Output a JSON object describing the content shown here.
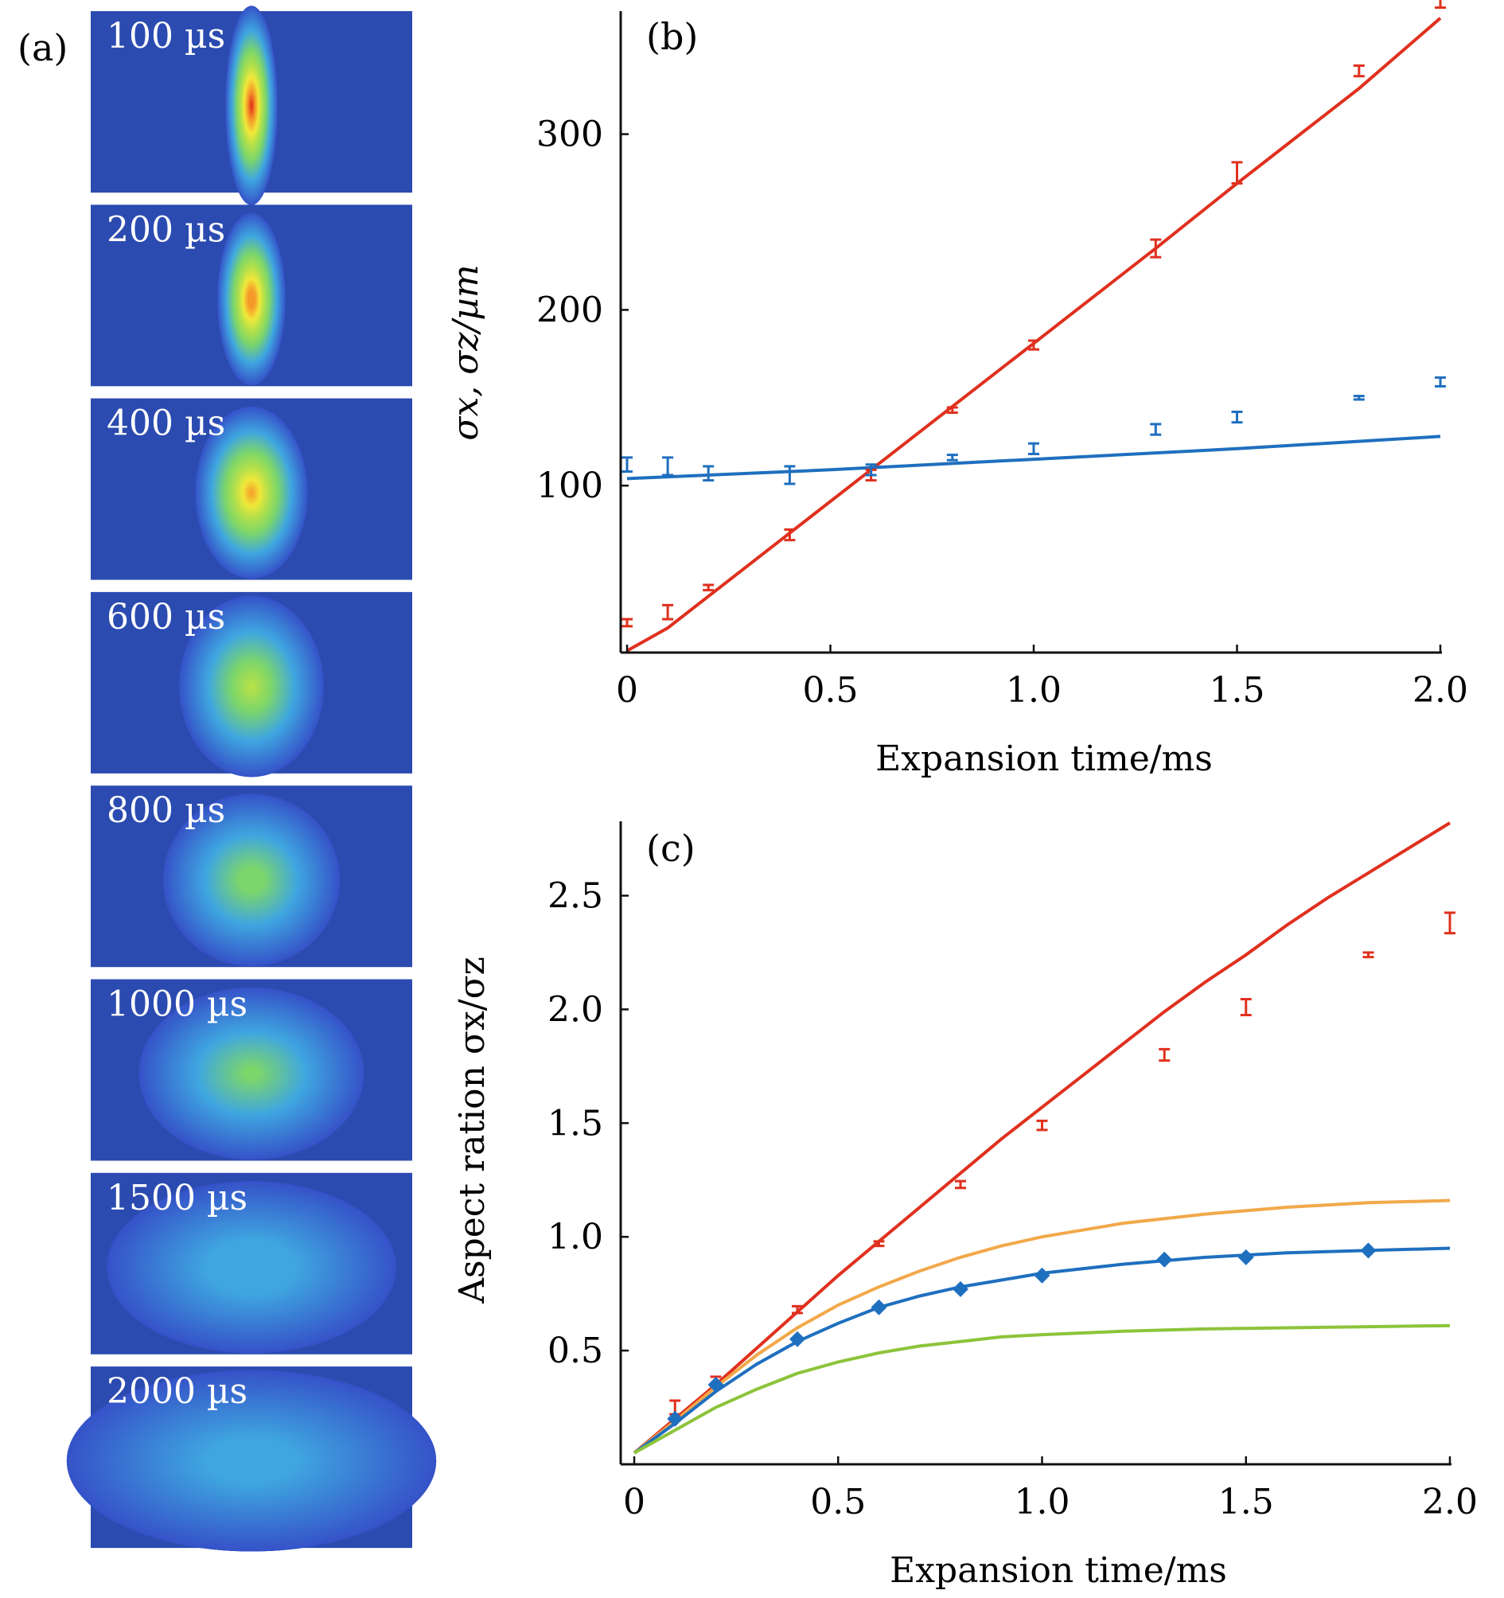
{
  "panel_labels": {
    "a": "(a)",
    "b": "(b)",
    "c": "(c)"
  },
  "images": [
    {
      "label": "100 µs",
      "t_us": 100,
      "rx": 0.065,
      "ry": 0.44,
      "peak": 1.0
    },
    {
      "label": "200 µs",
      "t_us": 200,
      "rx": 0.085,
      "ry": 0.38,
      "peak": 0.95
    },
    {
      "label": "400 µs",
      "t_us": 400,
      "rx": 0.14,
      "ry": 0.38,
      "peak": 0.85
    },
    {
      "label": "600 µs",
      "t_us": 600,
      "rx": 0.18,
      "ry": 0.4,
      "peak": 0.62
    },
    {
      "label": "800 µs",
      "t_us": 800,
      "rx": 0.22,
      "ry": 0.38,
      "peak": 0.52
    },
    {
      "label": "1000 µs",
      "t_us": 1000,
      "rx": 0.28,
      "ry": 0.38,
      "peak": 0.48
    },
    {
      "label": "1500 µs",
      "t_us": 1500,
      "rx": 0.36,
      "ry": 0.38,
      "peak": 0.36
    },
    {
      "label": "2000 µs",
      "t_us": 2000,
      "rx": 0.46,
      "ry": 0.4,
      "peak": 0.33
    }
  ],
  "colors": {
    "red": "#e0301e",
    "blue": "#1f6fbf",
    "orange": "#f2a84a",
    "green": "#8cc43a",
    "image_bg": "#2b4bb0"
  },
  "chart_data": [
    {
      "id": "b",
      "type": "scatter",
      "xlabel": "Expansion time/ms",
      "ylabel": "σx, σz/µm",
      "xlim": [
        0,
        2.0
      ],
      "ylim": [
        5,
        370
      ],
      "xticks": [
        0,
        0.5,
        1.0,
        1.5,
        2.0
      ],
      "xtick_labels": [
        "0",
        "0.5",
        "1.0",
        "1.5",
        "2.0"
      ],
      "yticks": [
        100,
        200,
        300
      ],
      "yticks_labels": [
        "100",
        "200",
        "300"
      ],
      "grid": false,
      "series": [
        {
          "color": "#e0301e",
          "x": [
            0,
            0.1,
            0.2,
            0.4,
            0.6,
            0.8,
            1.0,
            1.3,
            1.5,
            1.8,
            2.0
          ],
          "y": [
            22,
            28,
            42,
            72,
            106,
            143,
            180,
            235,
            278,
            336,
            378
          ],
          "err": [
            2,
            4,
            1.5,
            3,
            3,
            1.5,
            2.5,
            5,
            6,
            3,
            6
          ]
        },
        {
          "color": "#1f6fbf",
          "x": [
            0,
            0.1,
            0.2,
            0.4,
            0.6,
            0.8,
            1.0,
            1.3,
            1.5,
            1.8,
            2.0
          ],
          "y": [
            112,
            111,
            107,
            106,
            109,
            116,
            121,
            132,
            139,
            150,
            159
          ],
          "err": [
            4,
            5,
            4,
            5,
            3,
            1.5,
            3,
            3,
            3,
            1,
            2.5
          ]
        }
      ],
      "fits": [
        {
          "color": "#e0301e",
          "x": [
            0,
            0.1,
            0.2,
            0.4,
            0.6,
            0.8,
            1.0,
            1.3,
            1.5,
            1.8,
            2.0
          ],
          "y": [
            6,
            19,
            37,
            73,
            109,
            145,
            181,
            235,
            272,
            326,
            366
          ]
        },
        {
          "color": "#1f6fbf",
          "x": [
            0,
            0.5,
            1.0,
            1.5,
            2.0
          ],
          "y": [
            104,
            109,
            115,
            121,
            128
          ]
        }
      ]
    },
    {
      "id": "c",
      "type": "line",
      "xlabel": "Expansion time/ms",
      "ylabel": "Aspect ration σx/σz",
      "xlim": [
        0,
        2.0
      ],
      "ylim": [
        0,
        2.82
      ],
      "xticks": [
        0,
        0.5,
        1.0,
        1.5,
        2.0
      ],
      "xtick_labels": [
        "0",
        "0.5",
        "1.0",
        "1.5",
        "2.0"
      ],
      "yticks": [
        0.5,
        1.0,
        1.5,
        2.0,
        2.5
      ],
      "ytick_labels": [
        "0.5",
        "1.0",
        "1.5",
        "2.0",
        "2.5"
      ],
      "grid": false,
      "series": [
        {
          "color": "#e0301e",
          "marker": "errorbar",
          "x": [
            0.1,
            0.2,
            0.4,
            0.6,
            0.8,
            1.0,
            1.3,
            1.5,
            1.8,
            2.0
          ],
          "y": [
            0.25,
            0.37,
            0.68,
            0.97,
            1.23,
            1.49,
            1.8,
            2.01,
            2.24,
            2.38
          ],
          "err": [
            0.03,
            0.015,
            0.015,
            0.01,
            0.015,
            0.02,
            0.025,
            0.035,
            0.01,
            0.045
          ]
        },
        {
          "color": "#1f6fbf",
          "marker": "diamond",
          "x": [
            0.1,
            0.2,
            0.4,
            0.6,
            0.8,
            1.0,
            1.3,
            1.5,
            1.8
          ],
          "y": [
            0.2,
            0.35,
            0.55,
            0.69,
            0.77,
            0.83,
            0.9,
            0.91,
            0.94
          ]
        }
      ],
      "fits": [
        {
          "color": "#e0301e",
          "x": [
            0,
            0.1,
            0.2,
            0.3,
            0.4,
            0.5,
            0.6,
            0.7,
            0.8,
            0.9,
            1.0,
            1.1,
            1.2,
            1.3,
            1.4,
            1.5,
            1.6,
            1.7,
            1.8,
            1.9,
            2.0
          ],
          "y": [
            0.05,
            0.2,
            0.35,
            0.51,
            0.67,
            0.83,
            0.98,
            1.13,
            1.28,
            1.43,
            1.57,
            1.71,
            1.85,
            1.99,
            2.12,
            2.24,
            2.37,
            2.49,
            2.6,
            2.71,
            2.82
          ]
        },
        {
          "color": "#f2a84a",
          "x": [
            0,
            0.1,
            0.2,
            0.3,
            0.4,
            0.5,
            0.6,
            0.7,
            0.8,
            0.9,
            1.0,
            1.2,
            1.4,
            1.6,
            1.8,
            2.0
          ],
          "y": [
            0.05,
            0.19,
            0.34,
            0.48,
            0.6,
            0.7,
            0.78,
            0.85,
            0.91,
            0.96,
            1.0,
            1.06,
            1.1,
            1.13,
            1.15,
            1.16
          ]
        },
        {
          "color": "#1f6fbf",
          "x": [
            0,
            0.1,
            0.2,
            0.3,
            0.4,
            0.5,
            0.6,
            0.7,
            0.8,
            0.9,
            1.0,
            1.2,
            1.4,
            1.6,
            1.8,
            2.0
          ],
          "y": [
            0.05,
            0.18,
            0.32,
            0.44,
            0.54,
            0.62,
            0.69,
            0.74,
            0.78,
            0.81,
            0.84,
            0.88,
            0.91,
            0.93,
            0.94,
            0.95
          ]
        },
        {
          "color": "#8cc43a",
          "x": [
            0,
            0.1,
            0.2,
            0.3,
            0.4,
            0.5,
            0.6,
            0.7,
            0.8,
            0.9,
            1.0,
            1.2,
            1.4,
            1.6,
            1.8,
            2.0
          ],
          "y": [
            0.05,
            0.15,
            0.25,
            0.33,
            0.4,
            0.45,
            0.49,
            0.52,
            0.54,
            0.56,
            0.57,
            0.585,
            0.595,
            0.6,
            0.605,
            0.61
          ]
        }
      ]
    }
  ]
}
